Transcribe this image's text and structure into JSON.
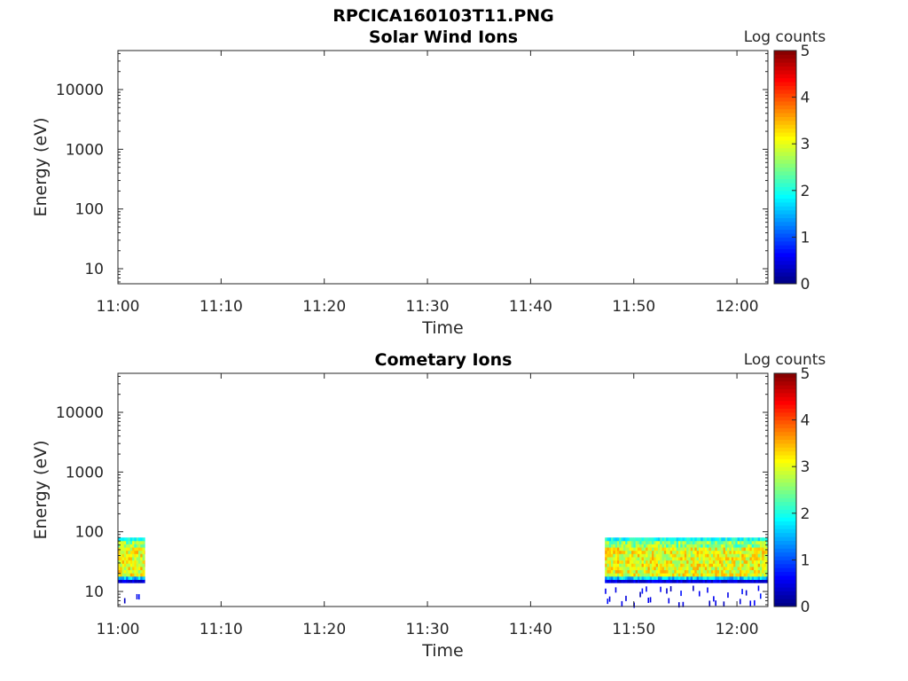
{
  "figure": {
    "filename_title": "RPCICA160103T11.PNG"
  },
  "chart_data": [
    {
      "type": "heatmap",
      "title": "Solar Wind Ions",
      "xlabel": "Time",
      "ylabel": "Energy (eV)",
      "y_scale": "log",
      "ylim": [
        5.6,
        45000
      ],
      "xlim": [
        "11:00",
        "12:03"
      ],
      "x_ticks": [
        "11:00",
        "11:10",
        "11:20",
        "11:30",
        "11:40",
        "11:50",
        "12:00"
      ],
      "y_ticks": [
        "10",
        "100",
        "1000",
        "10000"
      ],
      "colorbar": {
        "label": "Log counts",
        "range": [
          0,
          5
        ],
        "ticks": [
          "0",
          "1",
          "2",
          "3",
          "4",
          "5"
        ],
        "colormap": "jet"
      },
      "segments": []
    },
    {
      "type": "heatmap",
      "title": "Cometary Ions",
      "xlabel": "Time",
      "ylabel": "Energy (eV)",
      "y_scale": "log",
      "ylim": [
        5.6,
        45000
      ],
      "xlim": [
        "11:00",
        "12:03"
      ],
      "x_ticks": [
        "11:00",
        "11:10",
        "11:20",
        "11:30",
        "11:40",
        "11:50",
        "12:00"
      ],
      "y_ticks": [
        "10",
        "100",
        "1000",
        "10000"
      ],
      "colorbar": {
        "label": "Log counts",
        "range": [
          0,
          5
        ],
        "ticks": [
          "0",
          "1",
          "2",
          "3",
          "4",
          "5"
        ],
        "colormap": "jet"
      },
      "segments": [
        {
          "start": "11:00",
          "end": "11:02.6",
          "energy_range_eV": [
            14,
            80
          ],
          "log_counts_range": [
            0.3,
            3.8
          ],
          "typical_log_counts": 3.0
        },
        {
          "start": "11:47.2",
          "end": "12:03",
          "energy_range_eV": [
            14,
            80
          ],
          "log_counts_range": [
            0.3,
            3.6
          ],
          "typical_log_counts": 2.9
        }
      ]
    }
  ]
}
